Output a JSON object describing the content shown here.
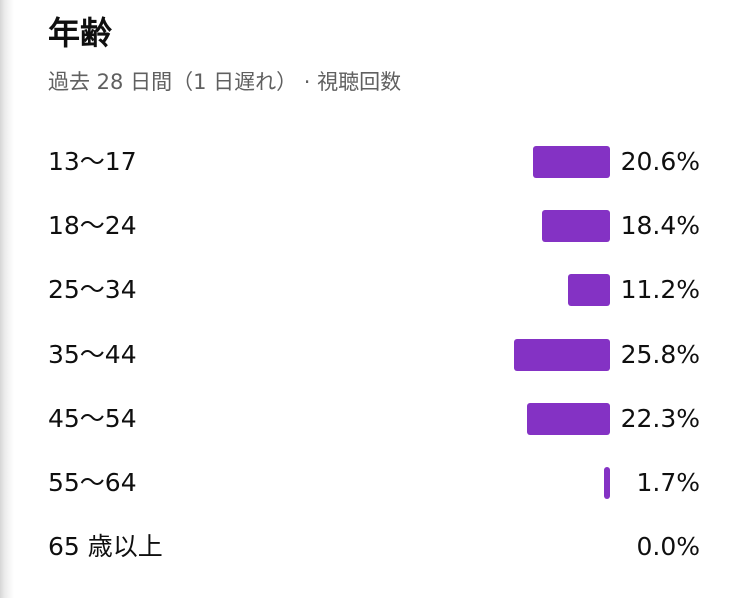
{
  "header": {
    "title": "年齢",
    "subtitle": "過去 28 日間（1 日遅れ） · 視聴回数"
  },
  "colors": {
    "bar": "#8432c4",
    "text": "#0f0f0f",
    "subtext": "#606060"
  },
  "chart_data": {
    "type": "bar",
    "orientation": "horizontal",
    "title": "年齢",
    "subtitle": "過去 28 日間（1 日遅れ） · 視聴回数",
    "categories": [
      "13〜17",
      "18〜24",
      "25〜34",
      "35〜44",
      "45〜54",
      "55〜64",
      "65 歳以上"
    ],
    "values": [
      20.6,
      18.4,
      11.2,
      25.8,
      22.3,
      1.7,
      0.0
    ],
    "value_labels": [
      "20.6%",
      "18.4%",
      "11.2%",
      "25.8%",
      "22.3%",
      "1.7%",
      "0.0%"
    ],
    "unit": "%",
    "grid": false,
    "legend": "none"
  }
}
